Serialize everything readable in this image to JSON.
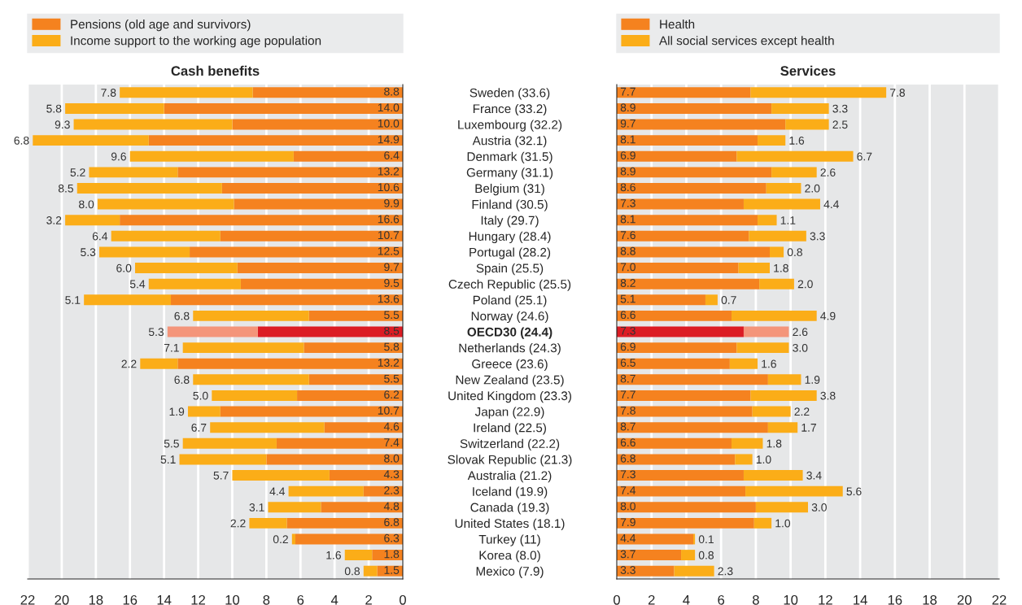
{
  "chart_data": [
    {
      "type": "bar",
      "orientation": "horizontal",
      "stacked": true,
      "title": "Cash benefits",
      "categories": [
        "Sweden (33.6)",
        "France (33.2)",
        "Luxembourg (32.2)",
        "Austria (32.1)",
        "Denmark (31.5)",
        "Germany (31.1)",
        "Belgium (31)",
        "Finland (30.5)",
        "Italy (29.7)",
        "Hungary (28.4)",
        "Portugal (28.2)",
        "Spain (25.5)",
        "Czech Republic (25.5)",
        "Poland (25.1)",
        "Norway (24.6)",
        "OECD30 (24.4)",
        "Netherlands (24.3)",
        "Greece (23.6)",
        "New Zealand (23.5)",
        "United Kingdom (23.3)",
        "Japan (22.9)",
        "Ireland (22.5)",
        "Switzerland (22.2)",
        "Slovak Republic (21.3)",
        "Australia (21.2)",
        "Iceland (19.9)",
        "Canada (19.3)",
        "United States (18.1)",
        "Turkey (11)",
        "Korea (8.0)",
        "Mexico (7.9)"
      ],
      "series": [
        {
          "name": "Pensions (old age and survivors)",
          "color": "#f5821f",
          "colors": [
            "#f5821f",
            "#f5821f",
            "#f5821f",
            "#f5821f",
            "#f5821f",
            "#f5821f",
            "#f5821f",
            "#f5821f",
            "#f5821f",
            "#f5821f",
            "#f5821f",
            "#f5821f",
            "#f5821f",
            "#f5821f",
            "#f5821f",
            "#dc1c24",
            "#f5821f",
            "#f5821f",
            "#f5821f",
            "#f5821f",
            "#f5821f",
            "#f5821f",
            "#f5821f",
            "#f5821f",
            "#f5821f",
            "#f5821f",
            "#f5821f",
            "#f5821f",
            "#f5821f",
            "#f5821f",
            "#f5821f"
          ],
          "values": [
            8.8,
            14.0,
            10.0,
            14.9,
            6.4,
            13.2,
            10.6,
            9.9,
            16.6,
            10.7,
            12.5,
            9.7,
            9.5,
            13.6,
            5.5,
            8.5,
            5.8,
            13.2,
            5.5,
            6.2,
            10.7,
            4.6,
            7.4,
            8.0,
            4.3,
            2.3,
            4.8,
            6.8,
            6.3,
            1.8,
            1.5
          ],
          "value_labels": [
            "8.8",
            "14.0",
            "10.0",
            "14.9",
            "6.4",
            "13.2",
            "10.6",
            "9.9",
            "16.6",
            "10.7",
            "12.5",
            "9.7",
            "9.5",
            "13.6",
            "5.5",
            "8.5",
            "5.8",
            "13.2",
            "5.5",
            "6.2",
            "10.7",
            "4.6",
            "7.4",
            "8.0",
            "4.3",
            "2.3",
            "4.8",
            "6.8",
            "6.3",
            "1.8",
            "1.5"
          ]
        },
        {
          "name": "Income support to the working age population",
          "color": "#fbad18",
          "colors": [
            "#fbad18",
            "#fbad18",
            "#fbad18",
            "#fbad18",
            "#fbad18",
            "#fbad18",
            "#fbad18",
            "#fbad18",
            "#fbad18",
            "#fbad18",
            "#fbad18",
            "#fbad18",
            "#fbad18",
            "#fbad18",
            "#fbad18",
            "#f4957a",
            "#fbad18",
            "#fbad18",
            "#fbad18",
            "#fbad18",
            "#fbad18",
            "#fbad18",
            "#fbad18",
            "#fbad18",
            "#fbad18",
            "#fbad18",
            "#fbad18",
            "#fbad18",
            "#fbad18",
            "#fbad18",
            "#fbad18"
          ],
          "values": [
            7.8,
            5.8,
            9.3,
            6.8,
            9.6,
            5.2,
            8.5,
            8.0,
            3.2,
            6.4,
            5.3,
            6.0,
            5.4,
            5.1,
            6.8,
            5.3,
            7.1,
            2.2,
            6.8,
            5.0,
            1.9,
            6.7,
            5.5,
            5.1,
            5.7,
            4.4,
            3.1,
            2.2,
            0.2,
            1.6,
            0.8
          ],
          "value_labels": [
            "7.8",
            "5.8",
            "9.3",
            "6.8",
            "9.6",
            "5.2",
            "8.5",
            "8.0",
            "3.2",
            "6.4",
            "5.3",
            "6.0",
            "5.4",
            "5.1",
            "6.8",
            "5.3",
            "7.1",
            "2.2",
            "6.8",
            "5.0",
            "1.9",
            "6.7",
            "5.5",
            "5.1",
            "5.7",
            "4.4",
            "3.1",
            "2.2",
            "0.2",
            "1.6",
            "0.8"
          ]
        }
      ],
      "xlim": [
        22,
        0
      ],
      "xticks": [
        22,
        20,
        18,
        16,
        14,
        12,
        10,
        8,
        6,
        4,
        2,
        0
      ],
      "grid": "x",
      "legend": "top"
    },
    {
      "type": "bar",
      "orientation": "horizontal",
      "stacked": true,
      "title": "Services",
      "series": [
        {
          "name": "Health",
          "color": "#f5821f",
          "colors": [
            "#f5821f",
            "#f5821f",
            "#f5821f",
            "#f5821f",
            "#f5821f",
            "#f5821f",
            "#f5821f",
            "#f5821f",
            "#f5821f",
            "#f5821f",
            "#f5821f",
            "#f5821f",
            "#f5821f",
            "#f5821f",
            "#f5821f",
            "#dc1c24",
            "#f5821f",
            "#f5821f",
            "#f5821f",
            "#f5821f",
            "#f5821f",
            "#f5821f",
            "#f5821f",
            "#f5821f",
            "#f5821f",
            "#f5821f",
            "#f5821f",
            "#f5821f",
            "#f5821f",
            "#f5821f",
            "#f5821f"
          ],
          "values": [
            7.7,
            8.9,
            9.7,
            8.1,
            6.9,
            8.9,
            8.6,
            7.3,
            8.1,
            7.6,
            8.8,
            7.0,
            8.2,
            5.1,
            6.6,
            7.3,
            6.9,
            6.5,
            8.7,
            7.7,
            7.8,
            8.7,
            6.6,
            6.8,
            7.3,
            7.4,
            8.0,
            7.9,
            4.4,
            3.7,
            3.3
          ],
          "value_labels": [
            "7.7",
            "8.9",
            "9.7",
            "8.1",
            "6.9",
            "8.9",
            "8.6",
            "7.3",
            "8.1",
            "7.6",
            "8.8",
            "7.0",
            "8.2",
            "5.1",
            "6.6",
            "7.3",
            "6.9",
            "6.5",
            "8.7",
            "7.7",
            "7.8",
            "8.7",
            "6.6",
            "6.8",
            "7.3",
            "7.4",
            "8.0",
            "7.9",
            "4.4",
            "3.7",
            "3.3"
          ]
        },
        {
          "name": "All social services except health",
          "color": "#fbad18",
          "colors": [
            "#fbad18",
            "#fbad18",
            "#fbad18",
            "#fbad18",
            "#fbad18",
            "#fbad18",
            "#fbad18",
            "#fbad18",
            "#fbad18",
            "#fbad18",
            "#fbad18",
            "#fbad18",
            "#fbad18",
            "#fbad18",
            "#fbad18",
            "#f4957a",
            "#fbad18",
            "#fbad18",
            "#fbad18",
            "#fbad18",
            "#fbad18",
            "#fbad18",
            "#fbad18",
            "#fbad18",
            "#fbad18",
            "#fbad18",
            "#fbad18",
            "#fbad18",
            "#fbad18",
            "#fbad18",
            "#fbad18"
          ],
          "values": [
            7.8,
            3.3,
            2.5,
            1.6,
            6.7,
            2.6,
            2.0,
            4.4,
            1.1,
            3.3,
            0.8,
            1.8,
            2.0,
            0.7,
            4.9,
            2.6,
            3.0,
            1.6,
            1.9,
            3.8,
            2.2,
            1.7,
            1.8,
            1.0,
            3.4,
            5.6,
            3.0,
            1.0,
            0.1,
            0.8,
            2.3
          ],
          "value_labels": [
            "7.8",
            "3.3",
            "2.5",
            "1.6",
            "6.7",
            "2.6",
            "2.0",
            "4.4",
            "1.1",
            "3.3",
            "0.8",
            "1.8",
            "2.0",
            "0.7",
            "4.9",
            "2.6",
            "3.0",
            "1.6",
            "1.9",
            "3.8",
            "2.2",
            "1.7",
            "1.8",
            "1.0",
            "3.4",
            "5.6",
            "3.0",
            "1.0",
            "0.1",
            "0.8",
            "2.3"
          ]
        }
      ],
      "xlim": [
        0,
        22
      ],
      "xticks": [
        0,
        2,
        4,
        6,
        8,
        10,
        12,
        14,
        16,
        18,
        20,
        22
      ],
      "grid": "x",
      "legend": "top",
      "tick_labels": "x"
    }
  ]
}
